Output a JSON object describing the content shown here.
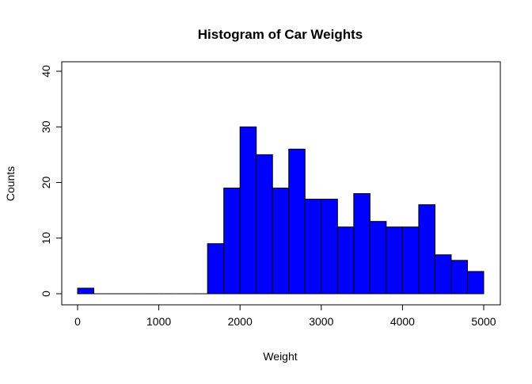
{
  "chart_data": {
    "type": "bar",
    "title": "Histogram of Car Weights",
    "xlabel": "Weight",
    "ylabel": "Counts",
    "xlim": [
      0,
      5000
    ],
    "ylim": [
      0,
      40
    ],
    "x_ticks": [
      0,
      1000,
      2000,
      3000,
      4000,
      5000
    ],
    "y_ticks": [
      0,
      10,
      20,
      30,
      40
    ],
    "bin_width": 200,
    "bins": [
      {
        "start": 0,
        "end": 200,
        "count": 1
      },
      {
        "start": 200,
        "end": 400,
        "count": 0
      },
      {
        "start": 400,
        "end": 600,
        "count": 0
      },
      {
        "start": 600,
        "end": 800,
        "count": 0
      },
      {
        "start": 800,
        "end": 1000,
        "count": 0
      },
      {
        "start": 1000,
        "end": 1200,
        "count": 0
      },
      {
        "start": 1200,
        "end": 1400,
        "count": 0
      },
      {
        "start": 1400,
        "end": 1600,
        "count": 0
      },
      {
        "start": 1600,
        "end": 1800,
        "count": 9
      },
      {
        "start": 1800,
        "end": 2000,
        "count": 19
      },
      {
        "start": 2000,
        "end": 2200,
        "count": 30
      },
      {
        "start": 2200,
        "end": 2400,
        "count": 25
      },
      {
        "start": 2400,
        "end": 2600,
        "count": 19
      },
      {
        "start": 2600,
        "end": 2800,
        "count": 26
      },
      {
        "start": 2800,
        "end": 3000,
        "count": 17
      },
      {
        "start": 3000,
        "end": 3200,
        "count": 17
      },
      {
        "start": 3200,
        "end": 3400,
        "count": 12
      },
      {
        "start": 3400,
        "end": 3600,
        "count": 18
      },
      {
        "start": 3600,
        "end": 3800,
        "count": 13
      },
      {
        "start": 3800,
        "end": 4000,
        "count": 12
      },
      {
        "start": 4000,
        "end": 4200,
        "count": 12
      },
      {
        "start": 4200,
        "end": 4400,
        "count": 16
      },
      {
        "start": 4400,
        "end": 4600,
        "count": 7
      },
      {
        "start": 4600,
        "end": 4800,
        "count": 6
      },
      {
        "start": 4800,
        "end": 5000,
        "count": 4
      }
    ],
    "bar_color": "#0000FF",
    "bar_border_color": "#000000",
    "grid": false,
    "legend": "none"
  }
}
